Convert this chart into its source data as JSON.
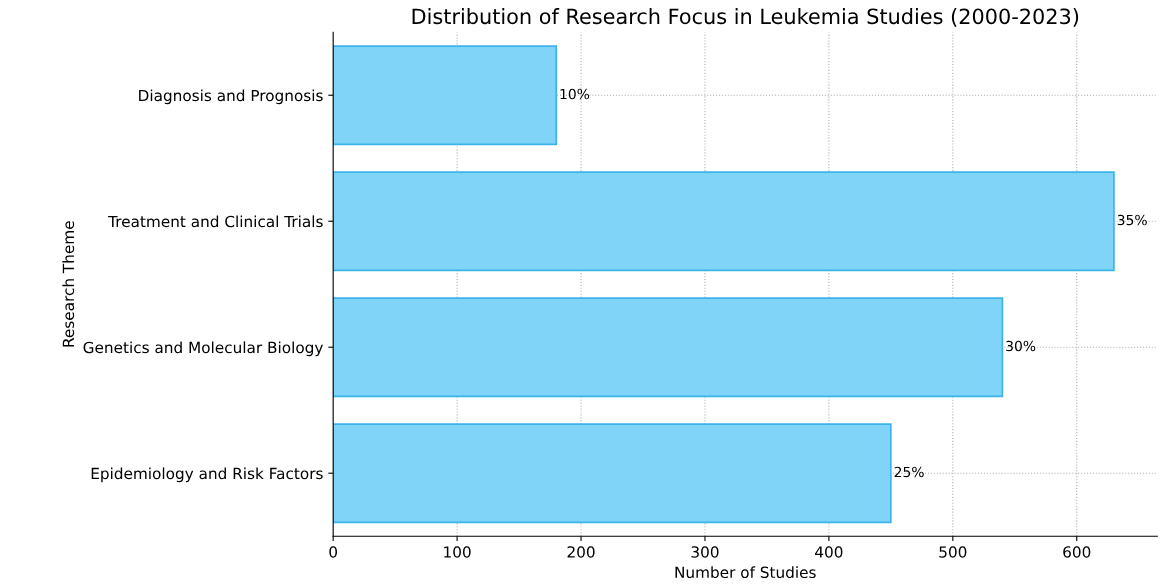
{
  "chart_data": {
    "type": "bar",
    "orientation": "horizontal",
    "title": "Distribution of Research Focus in Leukemia Studies (2000-2023)",
    "xlabel": "Number of Studies",
    "ylabel": "Research Theme",
    "categories": [
      "Diagnosis and Prognosis",
      "Treatment and Clinical Trials",
      "Genetics and Molecular Biology",
      "Epidemiology and Risk Factors"
    ],
    "values": [
      180,
      630,
      540,
      450
    ],
    "annotations": [
      {
        "text": "10%",
        "x": 180,
        "y": "Diagnosis and Prognosis"
      },
      {
        "text": "35%",
        "x": 630,
        "y": "Treatment and Clinical Trials"
      },
      {
        "text": "30%",
        "x": 540,
        "y": "Genetics and Molecular Biology"
      },
      {
        "text": "25%",
        "x": 450,
        "y": "Epidemiology and Risk Factors"
      }
    ],
    "color": "#7fd4f7",
    "xlim": [
      0,
      665
    ],
    "xticks": [
      0,
      100,
      200,
      300,
      400,
      500,
      600
    ],
    "grid": true,
    "legend": false
  }
}
